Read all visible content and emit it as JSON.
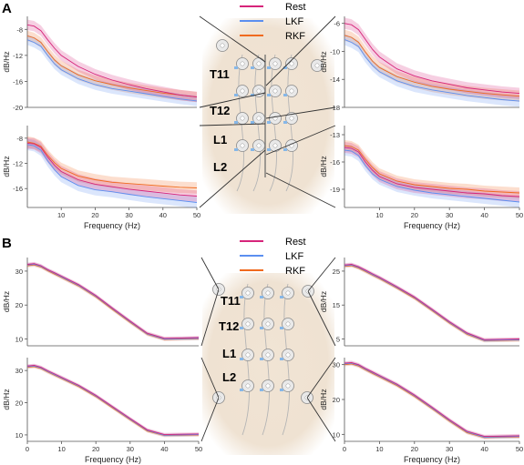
{
  "panel_labels": {
    "a": "A",
    "b": "B"
  },
  "legend": {
    "items": [
      {
        "label": "Rest",
        "color": "#d6247a"
      },
      {
        "label": "LKF",
        "color": "#5b8ff0"
      },
      {
        "label": "RKF",
        "color": "#f06a1e"
      }
    ]
  },
  "vertebrae": [
    "T11",
    "T12",
    "L1",
    "L2"
  ],
  "xlabel": "Frequency (Hz)",
  "ylabel": "dB/Hz",
  "colors": {
    "rest": "#d6247a",
    "lkf": "#5b8ff0",
    "rkf": "#f06a1e",
    "back": "#efe2d2",
    "electrode": "#e9e9e9",
    "electrode_edge": "#8a8a8a",
    "lead": "#b5b5b5"
  },
  "chart_data": [
    {
      "id": "A-top-left",
      "type": "line",
      "xlabel": "",
      "ylabel": "dB/Hz",
      "xlim": [
        0,
        50
      ],
      "ylim": [
        -20,
        -6
      ],
      "xticks": [],
      "yticks": [
        -8,
        -12,
        -16,
        -20
      ],
      "x": [
        0,
        2,
        4,
        6,
        8,
        10,
        15,
        20,
        25,
        30,
        35,
        40,
        45,
        50
      ],
      "series": [
        {
          "name": "Rest",
          "values": [
            -7.3,
            -7.5,
            -8.2,
            -9.6,
            -10.9,
            -12.0,
            -13.7,
            -14.9,
            -15.8,
            -16.5,
            -17.1,
            -17.6,
            -18.1,
            -18.4
          ]
        },
        {
          "name": "LKF",
          "values": [
            -9.6,
            -10.0,
            -10.6,
            -12.0,
            -13.3,
            -14.2,
            -15.6,
            -16.5,
            -17.1,
            -17.5,
            -17.9,
            -18.3,
            -18.7,
            -19.0
          ]
        },
        {
          "name": "RKF",
          "values": [
            -9.0,
            -9.3,
            -10.0,
            -11.4,
            -12.7,
            -13.6,
            -15.0,
            -15.9,
            -16.5,
            -17.0,
            -17.4,
            -17.8,
            -18.1,
            -18.4
          ]
        }
      ],
      "band": 0.8
    },
    {
      "id": "A-top-right",
      "type": "line",
      "xlabel": "",
      "ylabel": "dB/Hz",
      "xlim": [
        0,
        50
      ],
      "ylim": [
        -18,
        -5
      ],
      "xticks": [],
      "yticks": [
        -6,
        -10,
        -14,
        -18
      ],
      "x": [
        0,
        2,
        4,
        6,
        8,
        10,
        15,
        20,
        25,
        30,
        35,
        40,
        45,
        50
      ],
      "series": [
        {
          "name": "Rest",
          "values": [
            -6.0,
            -6.2,
            -6.9,
            -8.3,
            -9.7,
            -10.8,
            -12.5,
            -13.5,
            -14.2,
            -14.7,
            -15.2,
            -15.5,
            -15.8,
            -16.0
          ]
        },
        {
          "name": "LKF",
          "values": [
            -8.3,
            -8.7,
            -9.3,
            -10.8,
            -12.0,
            -12.9,
            -14.2,
            -15.0,
            -15.5,
            -15.9,
            -16.3,
            -16.6,
            -16.9,
            -17.1
          ]
        },
        {
          "name": "RKF",
          "values": [
            -7.7,
            -8.0,
            -8.7,
            -10.1,
            -11.4,
            -12.3,
            -13.6,
            -14.4,
            -15.0,
            -15.4,
            -15.7,
            -16.0,
            -16.2,
            -16.4
          ]
        }
      ],
      "band": 0.8
    },
    {
      "id": "A-bottom-left",
      "type": "line",
      "xlabel": "Frequency (Hz)",
      "ylabel": "dB/Hz",
      "xlim": [
        0,
        50
      ],
      "ylim": [
        -19,
        -6
      ],
      "xticks": [
        10,
        20,
        30,
        40,
        50
      ],
      "yticks": [
        -8,
        -12,
        -16
      ],
      "x": [
        0,
        2,
        4,
        6,
        8,
        10,
        15,
        20,
        25,
        30,
        35,
        40,
        45,
        50
      ],
      "series": [
        {
          "name": "Rest",
          "values": [
            -8.8,
            -8.9,
            -9.5,
            -11.0,
            -12.3,
            -13.3,
            -14.6,
            -15.3,
            -15.7,
            -16.1,
            -16.4,
            -16.7,
            -17.0,
            -17.2
          ]
        },
        {
          "name": "LKF",
          "values": [
            -9.0,
            -9.2,
            -9.9,
            -11.6,
            -13.0,
            -14.1,
            -15.5,
            -16.2,
            -16.5,
            -16.9,
            -17.3,
            -17.6,
            -17.9,
            -18.2
          ]
        },
        {
          "name": "RKF",
          "values": [
            -8.6,
            -8.8,
            -9.3,
            -10.7,
            -11.9,
            -12.8,
            -14.0,
            -14.6,
            -15.0,
            -15.2,
            -15.4,
            -15.6,
            -15.8,
            -15.9
          ]
        }
      ],
      "band": 0.9
    },
    {
      "id": "A-bottom-right",
      "type": "line",
      "xlabel": "Frequency (Hz)",
      "ylabel": "dB/Hz",
      "xlim": [
        0,
        50
      ],
      "ylim": [
        -21,
        -12
      ],
      "xticks": [
        10,
        20,
        30,
        40,
        50
      ],
      "yticks": [
        -13,
        -16,
        -19
      ],
      "x": [
        0,
        2,
        4,
        6,
        8,
        10,
        15,
        20,
        25,
        30,
        35,
        40,
        45,
        50
      ],
      "series": [
        {
          "name": "Rest",
          "values": [
            -14.4,
            -14.5,
            -14.9,
            -16.0,
            -16.9,
            -17.6,
            -18.4,
            -18.8,
            -19.0,
            -19.2,
            -19.4,
            -19.5,
            -19.7,
            -19.8
          ]
        },
        {
          "name": "LKF",
          "values": [
            -14.7,
            -14.8,
            -15.3,
            -16.4,
            -17.3,
            -17.9,
            -18.7,
            -19.1,
            -19.4,
            -19.6,
            -19.8,
            -20.0,
            -20.2,
            -20.4
          ]
        },
        {
          "name": "RKF",
          "values": [
            -14.2,
            -14.3,
            -14.7,
            -15.7,
            -16.6,
            -17.3,
            -18.1,
            -18.5,
            -18.7,
            -18.9,
            -19.0,
            -19.2,
            -19.3,
            -19.4
          ]
        }
      ],
      "band": 0.6
    },
    {
      "id": "B-top-left",
      "type": "line",
      "xlabel": "",
      "ylabel": "dB/Hz",
      "xlim": [
        0,
        50
      ],
      "ylim": [
        8,
        34
      ],
      "xticks": [],
      "yticks": [
        10,
        20,
        30
      ],
      "x": [
        0,
        2,
        4,
        6,
        8,
        10,
        15,
        20,
        25,
        30,
        35,
        40,
        45,
        50
      ],
      "series": [
        {
          "name": "Rest",
          "values": [
            32.0,
            32.2,
            31.6,
            30.4,
            29.5,
            28.5,
            26.0,
            22.8,
            19.0,
            15.3,
            11.7,
            10.2,
            10.3,
            10.4
          ]
        },
        {
          "name": "LKF",
          "values": [
            31.8,
            32.0,
            31.4,
            30.3,
            29.3,
            28.3,
            25.8,
            22.6,
            18.8,
            15.1,
            11.5,
            10.0,
            10.1,
            10.2
          ]
        },
        {
          "name": "RKF",
          "values": [
            31.6,
            31.8,
            31.2,
            30.1,
            29.1,
            28.1,
            25.6,
            22.4,
            18.6,
            14.9,
            11.4,
            9.9,
            10.0,
            10.1
          ]
        }
      ],
      "band": 0.5
    },
    {
      "id": "B-top-right",
      "type": "line",
      "xlabel": "",
      "ylabel": "dB/Hz",
      "xlim": [
        0,
        50
      ],
      "ylim": [
        3,
        29
      ],
      "xticks": [],
      "yticks": [
        5,
        15,
        25
      ],
      "x": [
        0,
        2,
        4,
        6,
        8,
        10,
        15,
        20,
        25,
        30,
        35,
        40,
        45,
        50
      ],
      "series": [
        {
          "name": "Rest",
          "values": [
            26.8,
            27.0,
            26.3,
            25.3,
            24.2,
            23.2,
            20.4,
            17.4,
            13.8,
            10.1,
            6.8,
            4.8,
            4.9,
            5.0
          ]
        },
        {
          "name": "LKF",
          "values": [
            26.6,
            26.8,
            26.1,
            25.1,
            24.0,
            23.0,
            20.2,
            17.2,
            13.6,
            9.9,
            6.6,
            4.6,
            4.7,
            4.8
          ]
        },
        {
          "name": "RKF",
          "values": [
            26.4,
            26.6,
            25.9,
            24.9,
            23.8,
            22.8,
            20.0,
            17.0,
            13.4,
            9.7,
            6.4,
            4.5,
            4.6,
            4.7
          ]
        }
      ],
      "band": 0.5
    },
    {
      "id": "B-bottom-left",
      "type": "line",
      "xlabel": "Frequency (Hz)",
      "ylabel": "dB/Hz",
      "xlim": [
        0,
        50
      ],
      "ylim": [
        8,
        34
      ],
      "xticks": [
        0,
        10,
        20,
        30,
        40,
        50
      ],
      "yticks": [
        10,
        20,
        30
      ],
      "x": [
        0,
        2,
        4,
        6,
        8,
        10,
        15,
        20,
        25,
        30,
        35,
        40,
        45,
        50
      ],
      "series": [
        {
          "name": "Rest",
          "values": [
            31.4,
            31.6,
            31.0,
            29.9,
            28.9,
            27.9,
            25.4,
            22.3,
            18.7,
            15.1,
            11.6,
            10.1,
            10.2,
            10.3
          ]
        },
        {
          "name": "LKF",
          "values": [
            31.2,
            31.4,
            30.8,
            29.7,
            28.7,
            27.7,
            25.2,
            22.1,
            18.5,
            14.9,
            11.4,
            9.9,
            10.0,
            10.1
          ]
        },
        {
          "name": "RKF",
          "values": [
            31.0,
            31.2,
            30.6,
            29.5,
            28.5,
            27.5,
            25.0,
            21.9,
            18.3,
            14.7,
            11.2,
            9.8,
            9.9,
            10.0
          ]
        }
      ],
      "band": 0.5
    },
    {
      "id": "B-bottom-right",
      "type": "line",
      "xlabel": "Frequency (Hz)",
      "ylabel": "dB/Hz",
      "xlim": [
        0,
        50
      ],
      "ylim": [
        8,
        32
      ],
      "xticks": [
        0,
        10,
        20,
        30,
        40,
        50
      ],
      "yticks": [
        10,
        20,
        30
      ],
      "x": [
        0,
        2,
        4,
        6,
        8,
        10,
        15,
        20,
        25,
        30,
        35,
        40,
        45,
        50
      ],
      "series": [
        {
          "name": "Rest",
          "values": [
            30.4,
            30.6,
            30.0,
            28.9,
            27.9,
            26.9,
            24.4,
            21.3,
            17.8,
            14.2,
            10.9,
            9.4,
            9.5,
            9.6
          ]
        },
        {
          "name": "LKF",
          "values": [
            30.2,
            30.4,
            29.8,
            28.7,
            27.7,
            26.7,
            24.2,
            21.1,
            17.6,
            14.0,
            10.7,
            9.2,
            9.3,
            9.4
          ]
        },
        {
          "name": "RKF",
          "values": [
            30.0,
            30.2,
            29.6,
            28.5,
            27.5,
            26.5,
            24.0,
            20.9,
            17.4,
            13.8,
            10.5,
            9.1,
            9.2,
            9.3
          ]
        }
      ],
      "band": 0.5
    }
  ]
}
